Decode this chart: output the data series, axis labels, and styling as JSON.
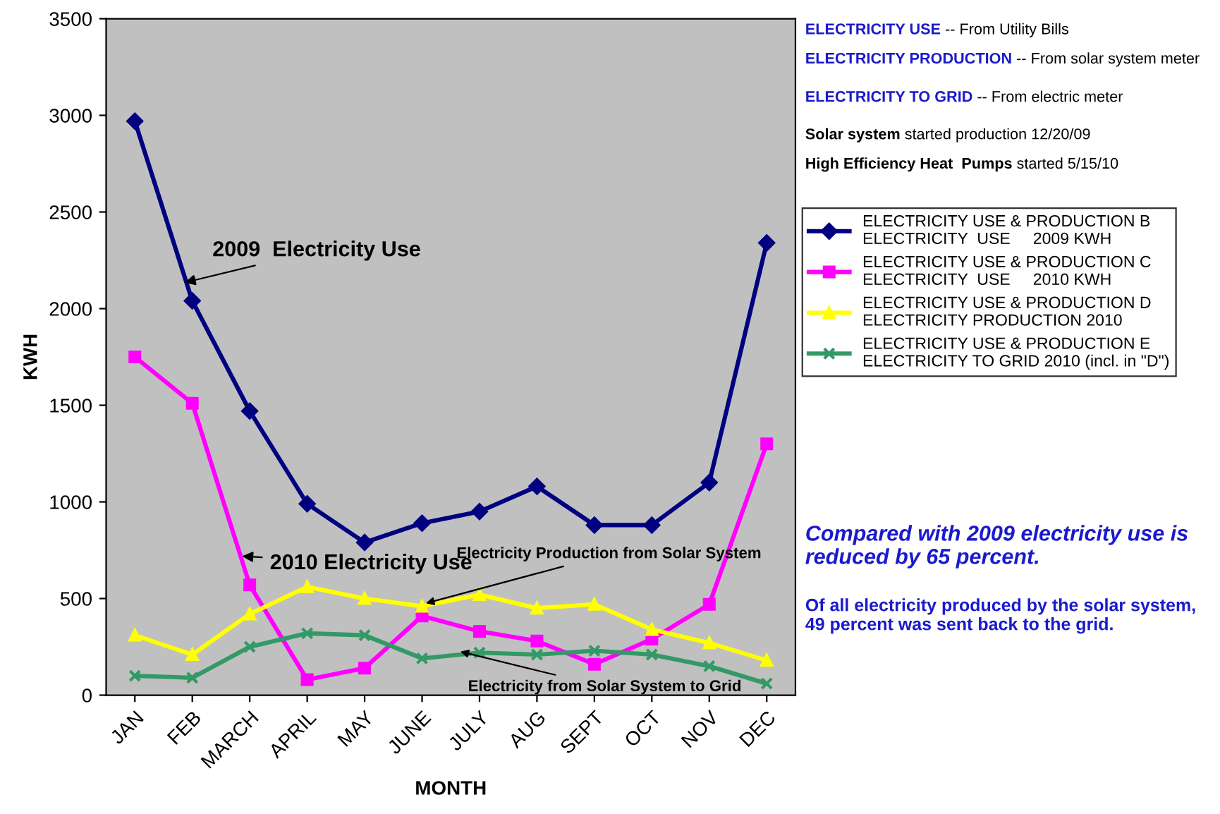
{
  "chart_data": {
    "type": "line",
    "xlabel": "MONTH",
    "ylabel": "KWH",
    "categories": [
      "JAN",
      "FEB",
      "MARCH",
      "APRIL",
      "MAY",
      "JUNE",
      "JULY",
      "AUG",
      "SEPT",
      "OCT",
      "NOV",
      "DEC"
    ],
    "series": [
      {
        "name": "ELECTRICITY USE & PRODUCTION B\nELECTRICITY  USE     2009 KWH",
        "color": "#000080",
        "marker": "diamond",
        "values": [
          2970,
          2040,
          1470,
          990,
          790,
          890,
          950,
          1080,
          880,
          880,
          1100,
          2340
        ]
      },
      {
        "name": "ELECTRICITY USE & PRODUCTION C\nELECTRICITY  USE     2010 KWH",
        "color": "#ff00ff",
        "marker": "square",
        "values": [
          1750,
          1510,
          570,
          80,
          140,
          410,
          330,
          280,
          160,
          290,
          470,
          1300
        ]
      },
      {
        "name": "ELECTRICITY USE & PRODUCTION D\nELECTRICITY PRODUCTION 2010",
        "color": "#ffff00",
        "marker": "triangle",
        "values": [
          310,
          210,
          420,
          560,
          500,
          460,
          520,
          450,
          470,
          340,
          270,
          180
        ]
      },
      {
        "name": "ELECTRICITY USE & PRODUCTION E\nELECTRICITY TO GRID 2010 (incl. in \"D\")",
        "color": "#339966",
        "marker": "cross",
        "values": [
          100,
          90,
          250,
          320,
          310,
          190,
          220,
          210,
          230,
          210,
          150,
          60
        ]
      }
    ],
    "ylim": [
      0,
      3500
    ],
    "yticks": [
      0,
      500,
      1000,
      1500,
      2000,
      2500,
      3000,
      3500
    ],
    "grid": false,
    "legend": "right",
    "annotations": [
      "ELECTRICITY USE",
      "-- From Utility Bills",
      "ELECTRICITY PRODUCTION",
      "-- From solar system meter",
      "ELECTRICITY TO GRID",
      "-- From electric meter",
      "Solar system",
      "started production 12/20/09",
      "High Efficiency Heat  Pumps",
      "started 5/15/10",
      "Compared with 2009 electricity use is reduced by 65 percent.",
      "Of all electricity produced by the solar system, 49 percent was sent back to the grid.",
      {
        "text": "2009  Electricity Use",
        "x": "FEB",
        "y": 2130
      },
      {
        "text": "2010 Electricity Use",
        "x": "MARCH",
        "y": 720
      },
      {
        "text": "Electricity Production from Solar System",
        "x": "JUNE",
        "y": 470
      },
      {
        "text": "Electricity from Solar System to Grid",
        "x": "JULY",
        "y": 230
      }
    ]
  }
}
